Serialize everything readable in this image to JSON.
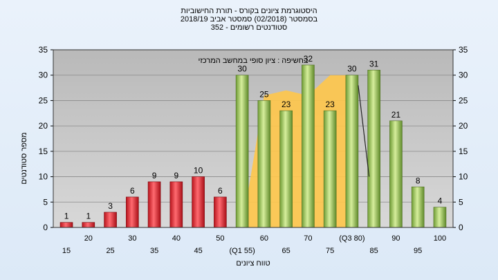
{
  "title_lines": [
    "היסטוגרמת ציונים בקורס - תורת החישוביות",
    "בסמסטר  (02/2018)  סמסטר אביב 2018/19",
    "סטודנטים רשומים - 352"
  ],
  "chart_data": {
    "type": "bar",
    "title": "היסטוגרמת ציונים בקורס - תורת החישוביות",
    "annotation": "בחשיפה : ציון סופי במחשב המרכזי",
    "ylabel": "מספר סטודנטים",
    "xlabel": "טווח ציונים",
    "ylim": [
      0,
      35
    ],
    "yticks": [
      0,
      5,
      10,
      15,
      20,
      25,
      30,
      35
    ],
    "grid": true,
    "categories": [
      "15",
      "20",
      "25",
      "30",
      "35",
      "40",
      "45",
      "50",
      "55",
      "60",
      "65",
      "70",
      "75",
      "80",
      "85",
      "90",
      "95",
      "100"
    ],
    "x_tick_labels": [
      "15",
      "20",
      "25",
      "30",
      "35",
      "40",
      "45",
      "50",
      "(Q1 55)",
      "60",
      "65",
      "70",
      "75",
      "(Q3 80)",
      "85",
      "90",
      "95",
      "100"
    ],
    "values": [
      1,
      1,
      3,
      6,
      9,
      9,
      10,
      6,
      30,
      25,
      23,
      32,
      23,
      30,
      31,
      21,
      8,
      4
    ],
    "bar_colors": [
      "red",
      "red",
      "red",
      "red",
      "red",
      "red",
      "red",
      "red",
      "green",
      "green",
      "green",
      "green",
      "green",
      "green",
      "green",
      "green",
      "green",
      "green"
    ],
    "box_area": {
      "description_in_data_units": true,
      "start_category": "55",
      "end_category": "80",
      "values_at_categories": [
        0,
        26,
        27,
        26,
        30,
        30
      ],
      "label_categories": [
        "55",
        "60",
        "65",
        "70",
        "75",
        "80"
      ]
    },
    "median_line": [
      {
        "category": "80",
        "value": 28
      },
      {
        "category": "85",
        "value": 10
      }
    ]
  },
  "colors": {
    "red_bar": "#e8343c",
    "green_bar": "#9ac75a",
    "box_fill": "#ffc74a",
    "plot_bg": "#c4c4c4",
    "grid": "#8a8a8a"
  }
}
